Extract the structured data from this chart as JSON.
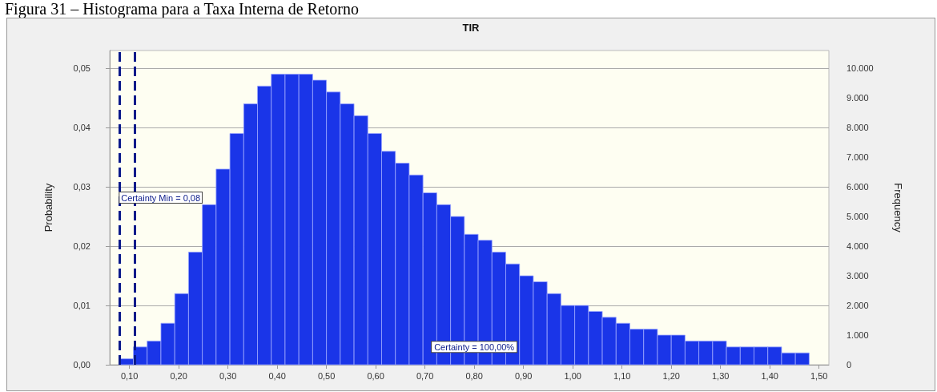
{
  "chart_data": {
    "type": "histogram",
    "title": "TIR",
    "xlabel": null,
    "ylabel": "Probability",
    "y2label": "Frequency",
    "annotations": [
      "Figura 31 – Histograma para a Taxa Interna de Retorno",
      {
        "text": "Certainty = 100,00%",
        "x": 0.8,
        "y": 0.003
      }
    ],
    "bins": [
      0.08,
      0.108,
      0.136,
      0.164,
      0.192,
      0.22,
      0.248,
      0.276,
      0.304,
      0.332,
      0.36,
      0.388,
      0.416,
      0.444,
      0.472,
      0.5,
      0.528,
      0.556,
      0.584,
      0.612,
      0.64,
      0.668,
      0.696,
      0.724,
      0.752,
      0.78,
      0.808,
      0.836,
      0.864,
      0.892,
      0.92,
      0.948,
      0.976,
      1.004,
      1.032,
      1.06,
      1.088,
      1.116,
      1.144,
      1.172,
      1.2,
      1.228,
      1.256,
      1.284,
      1.312,
      1.34,
      1.368,
      1.396,
      1.424,
      1.452,
      1.48
    ],
    "values": [
      0.001,
      0.003,
      0.004,
      0.007,
      0.012,
      0.019,
      0.027,
      0.033,
      0.039,
      0.044,
      0.047,
      0.049,
      0.049,
      0.049,
      0.048,
      0.046,
      0.044,
      0.042,
      0.039,
      0.036,
      0.034,
      0.032,
      0.029,
      0.027,
      0.025,
      0.022,
      0.021,
      0.019,
      0.017,
      0.015,
      0.014,
      0.012,
      0.01,
      0.01,
      0.009,
      0.008,
      0.007,
      0.006,
      0.006,
      0.005,
      0.005,
      0.004,
      0.004,
      0.004,
      0.003,
      0.003,
      0.003,
      0.003,
      0.002,
      0.002
    ],
    "color": "#1a35e8",
    "xlim": [
      0.06,
      1.52
    ],
    "xticks": [
      {
        "value": 0.1,
        "label": "0,10"
      },
      {
        "value": 0.2,
        "label": "0,20"
      },
      {
        "value": 0.3,
        "label": "0,30"
      },
      {
        "value": 0.4,
        "label": "0,40"
      },
      {
        "value": 0.5,
        "label": "0,50"
      },
      {
        "value": 0.6,
        "label": "0,60"
      },
      {
        "value": 0.7,
        "label": "0,70"
      },
      {
        "value": 0.8,
        "label": "0,80"
      },
      {
        "value": 0.9,
        "label": "0,90"
      },
      {
        "value": 1.0,
        "label": "1,00"
      },
      {
        "value": 1.1,
        "label": "1,10"
      },
      {
        "value": 1.2,
        "label": "1,20"
      },
      {
        "value": 1.3,
        "label": "1,30"
      },
      {
        "value": 1.4,
        "label": "1,40"
      },
      {
        "value": 1.5,
        "label": "1,50"
      }
    ],
    "ylim": [
      0,
      0.053
    ],
    "yticks": [
      {
        "value": 0,
        "label": "0,00"
      },
      {
        "value": 0.01,
        "label": "0,01"
      },
      {
        "value": 0.02,
        "label": "0,02"
      },
      {
        "value": 0.03,
        "label": "0,03"
      },
      {
        "value": 0.04,
        "label": "0,04"
      },
      {
        "value": 0.05,
        "label": "0,05"
      }
    ],
    "y2lim": [
      0,
      10600
    ],
    "y2ticks": [
      0,
      {
        "value": 1000,
        "label": "1.000"
      },
      {
        "value": 2000,
        "label": "2.000"
      },
      {
        "value": 3000,
        "label": "3.000"
      },
      {
        "value": 4000,
        "label": "4.000"
      },
      {
        "value": 5000,
        "label": "5.000"
      },
      {
        "value": 6000,
        "label": "6.000"
      },
      {
        "value": 7000,
        "label": "7.000"
      },
      {
        "value": 8000,
        "label": "8.000"
      },
      {
        "value": 9000,
        "label": "9.000"
      },
      {
        "value": 10000,
        "label": "10.000"
      }
    ],
    "ref_lines": [
      {
        "axis": "x",
        "value": 0.08,
        "label": "Certainty Min = 0,08",
        "color": "#0a1a8a",
        "line_style": "dashed"
      },
      {
        "axis": "x",
        "value": 0.11,
        "label": null,
        "color": "#0a1a8a",
        "line_style": "dashed"
      }
    ],
    "grid": "y",
    "legend": false
  }
}
